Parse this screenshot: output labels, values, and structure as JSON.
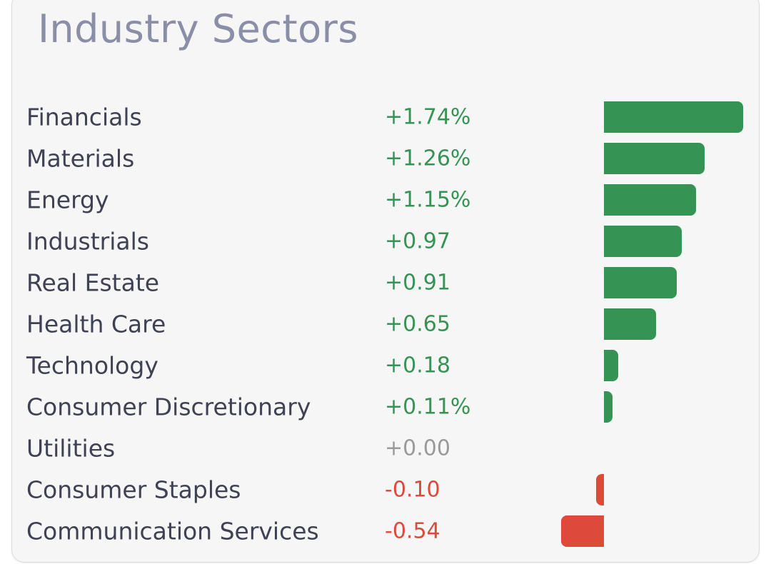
{
  "title": "Industry Sectors",
  "colors": {
    "positive": "#359454",
    "negative": "#dd4a3b",
    "neutral": "#9a9a9a"
  },
  "chart_data": {
    "type": "bar",
    "orientation": "horizontal",
    "title": "Industry Sectors",
    "categories": [
      "Financials",
      "Materials",
      "Energy",
      "Industrials",
      "Real Estate",
      "Health Care",
      "Technology",
      "Consumer Discretionary",
      "Utilities",
      "Consumer Staples",
      "Communication Services"
    ],
    "values": [
      1.74,
      1.26,
      1.15,
      0.97,
      0.91,
      0.65,
      0.18,
      0.11,
      0.0,
      -0.1,
      -0.54
    ],
    "labels": [
      "+1.74%",
      "+1.26%",
      "+1.15%",
      "+0.97",
      "+0.91",
      "+0.65",
      "+0.18",
      "+0.11%",
      "+0.00",
      "-0.10",
      "-0.54"
    ],
    "grid": false,
    "legend": "none"
  }
}
